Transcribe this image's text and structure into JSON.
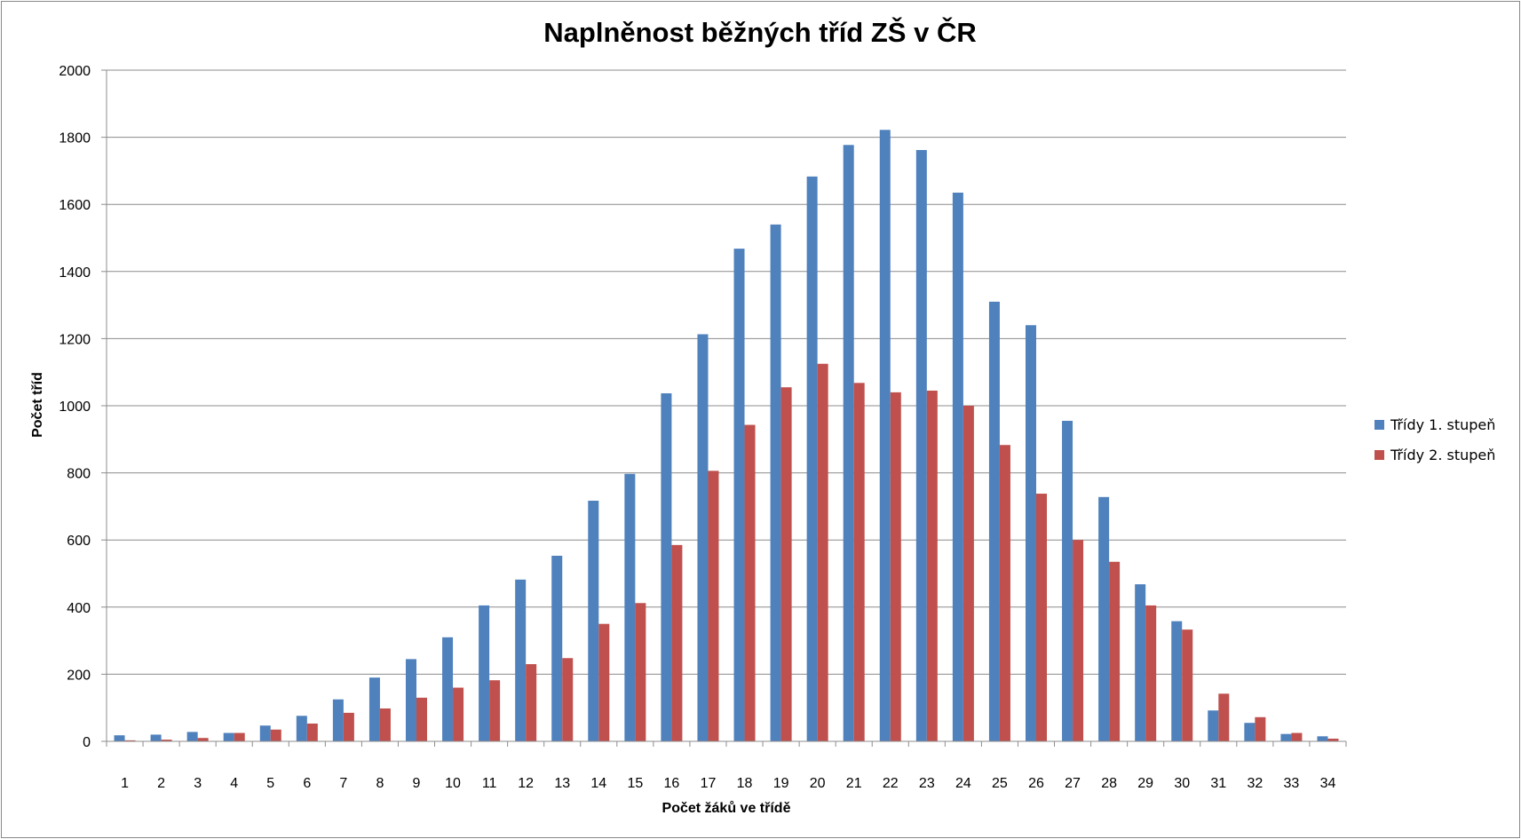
{
  "chart_data": {
    "type": "bar",
    "title": "Naplněnost běžných tříd ZŠ v ČR",
    "xlabel": "Počet žáků ve třídě",
    "ylabel": "Počet tříd",
    "ylim": [
      0,
      2000
    ],
    "yticks": [
      0,
      200,
      400,
      600,
      800,
      1000,
      1200,
      1400,
      1600,
      1800,
      2000
    ],
    "grid": true,
    "legend_position": "right",
    "categories": [
      "1",
      "2",
      "3",
      "4",
      "5",
      "6",
      "7",
      "8",
      "9",
      "10",
      "11",
      "12",
      "13",
      "14",
      "15",
      "16",
      "17",
      "18",
      "19",
      "20",
      "21",
      "22",
      "23",
      "24",
      "25",
      "26",
      "27",
      "28",
      "29",
      "30",
      "31",
      "32",
      "33",
      "34"
    ],
    "series": [
      {
        "name": "Třídy 1. stupeň",
        "color": "#4F81BD",
        "values": [
          18,
          20,
          28,
          25,
          47,
          76,
          125,
          190,
          245,
          310,
          405,
          482,
          553,
          717,
          797,
          1037,
          1213,
          1468,
          1540,
          1683,
          1777,
          1822,
          1762,
          1635,
          1310,
          1240,
          955,
          728,
          468,
          358,
          92,
          55,
          22,
          15
        ]
      },
      {
        "name": "Třídy 2. stupeň",
        "color": "#C0504D",
        "values": [
          3,
          5,
          10,
          25,
          35,
          53,
          85,
          98,
          130,
          160,
          182,
          230,
          248,
          350,
          412,
          585,
          806,
          943,
          1055,
          1125,
          1068,
          1040,
          1045,
          1000,
          883,
          738,
          600,
          535,
          405,
          333,
          142,
          72,
          25,
          8
        ]
      }
    ]
  }
}
